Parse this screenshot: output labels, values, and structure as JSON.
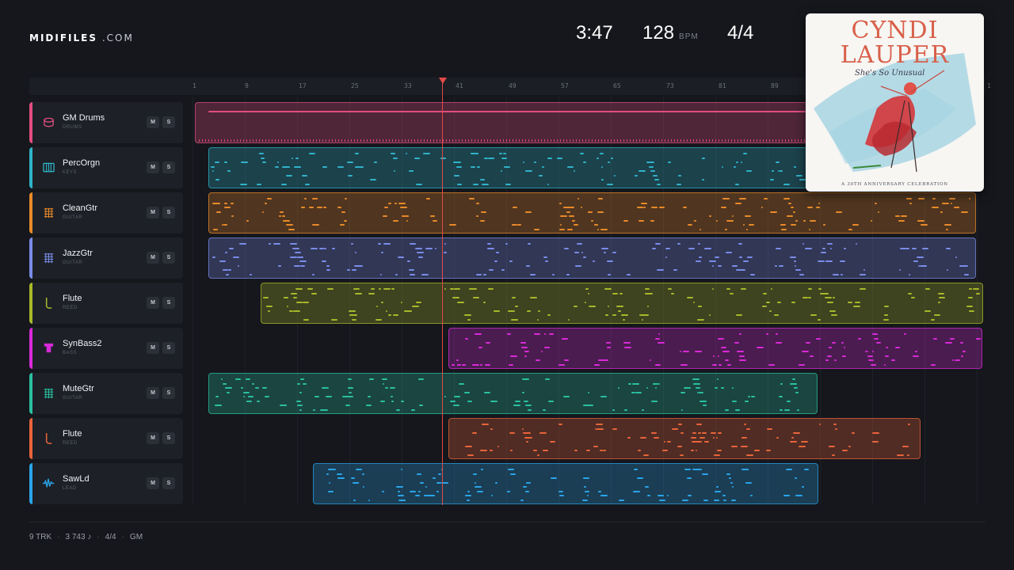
{
  "brand": {
    "bold": "MIDIFILES",
    "suffix": ".COM"
  },
  "transport": {
    "time": "3:47",
    "tempo": "128",
    "tempo_unit": "BPM",
    "meter": "4/4"
  },
  "ruler": {
    "ticks": [
      "1",
      "9",
      "17",
      "25",
      "33",
      "41",
      "49",
      "57",
      "65",
      "73",
      "81",
      "89",
      "1"
    ],
    "playhead_bar": 38
  },
  "tracks": [
    {
      "name": "GM Drums",
      "category": "DRUMS",
      "icon": "drum-icon",
      "color": "#e24e7f"
    },
    {
      "name": "PercOrgn",
      "category": "KEYS",
      "icon": "keyboard-icon",
      "color": "#2fb3c9"
    },
    {
      "name": "CleanGtr",
      "category": "GUITAR",
      "icon": "guitar-icon",
      "color": "#e88a2a"
    },
    {
      "name": "JazzGtr",
      "category": "GUITAR",
      "icon": "guitar-icon",
      "color": "#7a8ce8"
    },
    {
      "name": "Flute",
      "category": "REED",
      "icon": "flute-icon",
      "color": "#a8b82a"
    },
    {
      "name": "SynBass2",
      "category": "BASS",
      "icon": "bass-icon",
      "color": "#d82ad8"
    },
    {
      "name": "MuteGtr",
      "category": "GUITAR",
      "icon": "guitar-icon",
      "color": "#2ac0a0"
    },
    {
      "name": "Flute",
      "category": "REED",
      "icon": "flute-icon",
      "color": "#e8643a"
    },
    {
      "name": "SawLd",
      "category": "LEAD",
      "icon": "waveform-icon",
      "color": "#2aa4e8"
    }
  ],
  "buttons": {
    "mute": "M",
    "solo": "S"
  },
  "album": {
    "artist_line1": "CYNDI",
    "artist_line2": "LAUPER",
    "title": "She's So Unusual",
    "caption": "A 30TH ANNIVERSARY CELEBRATION"
  },
  "footer": {
    "tracks": "9 TRK",
    "notes": "3 743 ♪",
    "meter": "4/4",
    "standard": "GM"
  }
}
